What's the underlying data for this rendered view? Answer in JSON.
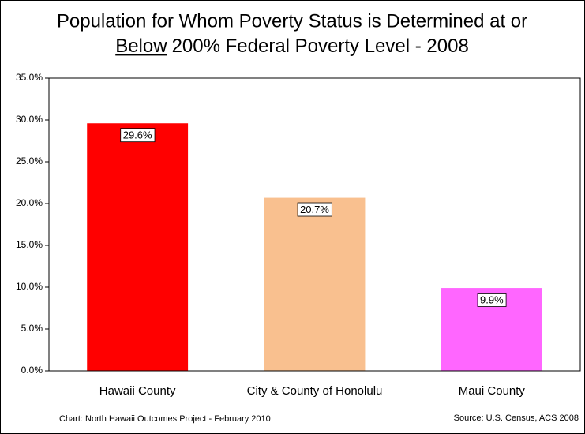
{
  "chart_data": {
    "type": "bar",
    "title": [
      "Population for Whom Poverty Status is Determined at or",
      "Below",
      "200%  Federal Poverty Level - 2008"
    ],
    "categories": [
      "Hawaii County",
      "City & County of Honolulu",
      "Maui County"
    ],
    "values": [
      29.6,
      20.7,
      9.9
    ],
    "value_labels": [
      "29.6%",
      "20.7%",
      "9.9%"
    ],
    "colors": [
      "#ff0000",
      "#f9c08f",
      "#ff66ff"
    ],
    "ylim": [
      0,
      35
    ],
    "yticks": [
      {
        "value": 0,
        "label": "0.0%"
      },
      {
        "value": 5,
        "label": "5.0%"
      },
      {
        "value": 10,
        "label": "10.0%"
      },
      {
        "value": 15,
        "label": "15.0%"
      },
      {
        "value": 20,
        "label": "20.0%"
      },
      {
        "value": 25,
        "label": "25.0%"
      },
      {
        "value": 30,
        "label": "30.0%"
      },
      {
        "value": 35,
        "label": "35.0%"
      }
    ],
    "annotations": [
      "Chart:  North Hawaii Outcomes Project - February 2010",
      "Source:  U.S. Census, ACS 2008"
    ]
  }
}
